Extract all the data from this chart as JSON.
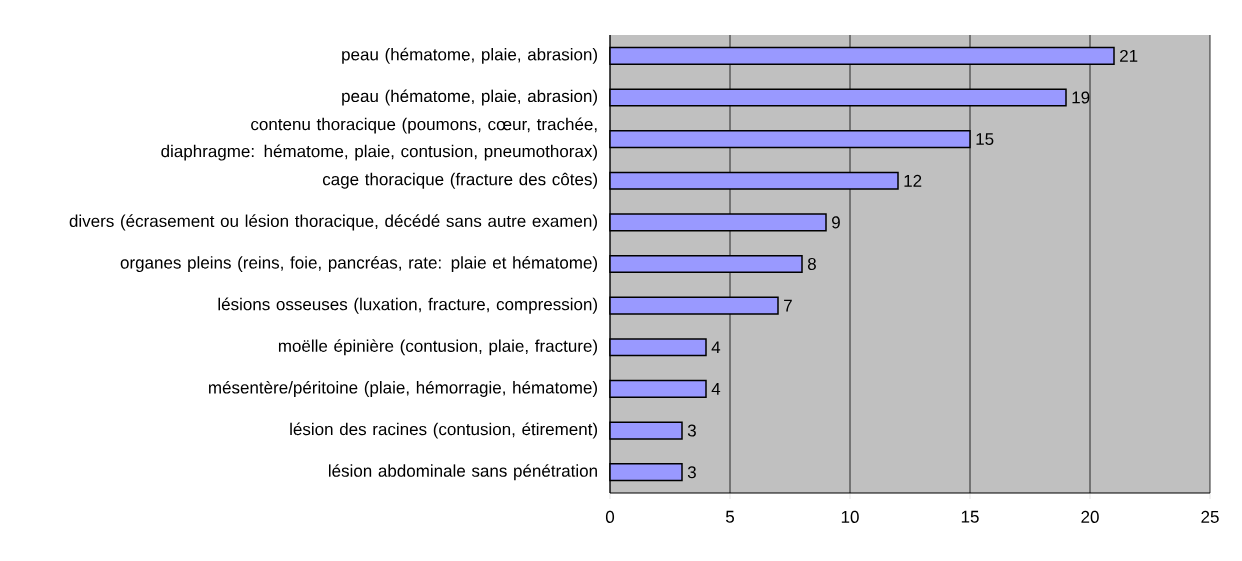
{
  "chart_data": {
    "type": "bar",
    "orientation": "horizontal",
    "categories": [
      "peau (hématome, plaie, abrasion)",
      "peau (hématome, plaie, abrasion)",
      "contenu thoracique (poumons, cœur, trachée, diaphragme: hématome, plaie, contusion, pneumothorax)",
      "cage thoracique (fracture des côtes)",
      "divers (écrasement ou lésion thoracique, décédé sans autre examen)",
      "organes pleins (reins, foie, pancréas, rate: plaie et hématome)",
      "lésions osseuses (luxation, fracture, compression)",
      "moëlle épinière (contusion, plaie, fracture)",
      "mésentère/péritoine (plaie, hémorragie, hématome)",
      "lésion des racines (contusion, étirement)",
      "lésion abdominale sans pénétration"
    ],
    "values": [
      21,
      19,
      15,
      12,
      9,
      8,
      7,
      4,
      4,
      3,
      3
    ],
    "color": "#9999ff",
    "xlim": [
      0,
      25
    ],
    "xticks": [
      0,
      5,
      10,
      15,
      20,
      25
    ],
    "grid": "x",
    "data_labels": true
  }
}
